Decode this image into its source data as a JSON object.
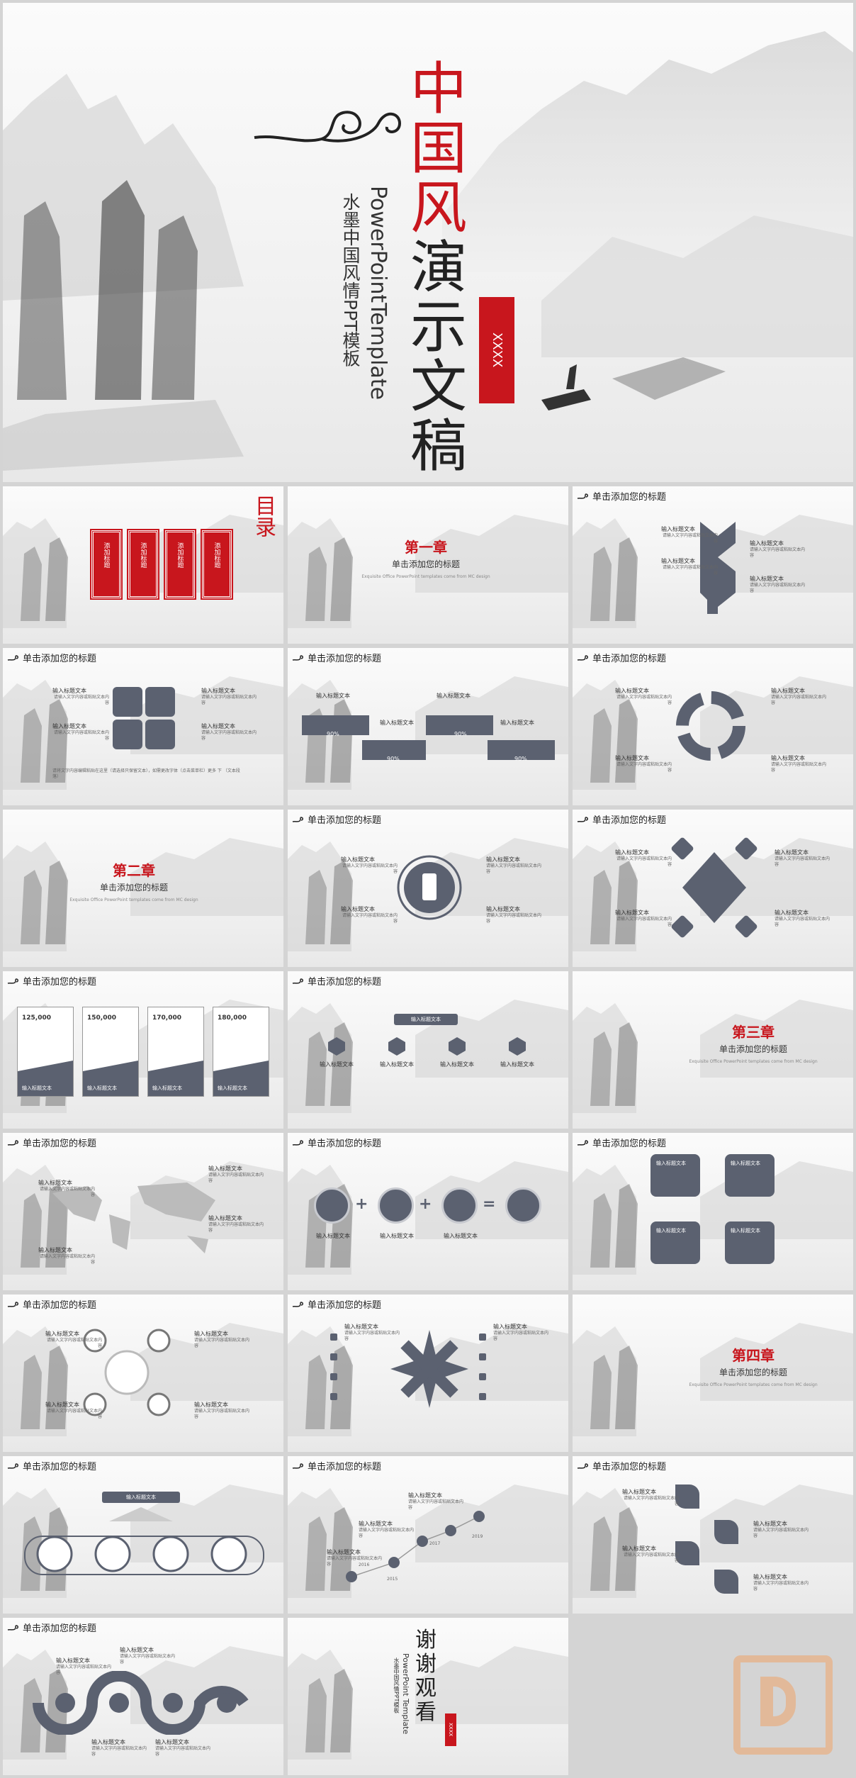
{
  "cover": {
    "title_chars": [
      "中",
      "国",
      "风",
      "演",
      "示",
      "文",
      "稿"
    ],
    "subtitle_en": "PowerPointTemplate",
    "subtitle_cn": "水墨中国风情PPT模板",
    "seal": "XXXX"
  },
  "toc": {
    "title": "目录",
    "items": [
      "添加标题",
      "添加标题",
      "添加标题",
      "添加标题"
    ]
  },
  "header_title": "单击添加您的标题",
  "chapters": [
    {
      "title": "第一章",
      "subtitle": "单击添加您的标题",
      "note": "Exquisite Office PowerPoint templates come from MC design"
    },
    {
      "title": "第二章",
      "subtitle": "单击添加您的标题",
      "note": "Exquisite Office PowerPoint templates come from MC design"
    },
    {
      "title": "第三章",
      "subtitle": "单击添加您的标题",
      "note": "Exquisite Office PowerPoint templates come from MC design"
    },
    {
      "title": "第四章",
      "subtitle": "单击添加您的标题",
      "note": "Exquisite Office PowerPoint templates come from MC design"
    }
  ],
  "input_title": "输入标题文本",
  "body_text": "请输入文字内容或粘贴文本内容",
  "pct": [
    "90%",
    "90%",
    "90%",
    "90%"
  ],
  "numbers": [
    "125,000",
    "150,000",
    "170,000",
    "180,000"
  ],
  "years": [
    "2019",
    "2017",
    "2016",
    "2015"
  ],
  "long_caption": "请将文字内容编辑粘贴在这里（请选择只保留文本），如需更改字体（点击菜单栏）更多 下 （文本段落）",
  "thanks": {
    "chars": [
      "谢",
      "谢",
      "观",
      "看"
    ],
    "subtitle_en": "PowerPoint Template",
    "subtitle_cn": "水墨中国风情PPT模板",
    "seal": "XXXX"
  },
  "colors": {
    "accent_red": "#c8161d",
    "shape_gray": "#5b6170",
    "background": "#d4d4d4"
  }
}
